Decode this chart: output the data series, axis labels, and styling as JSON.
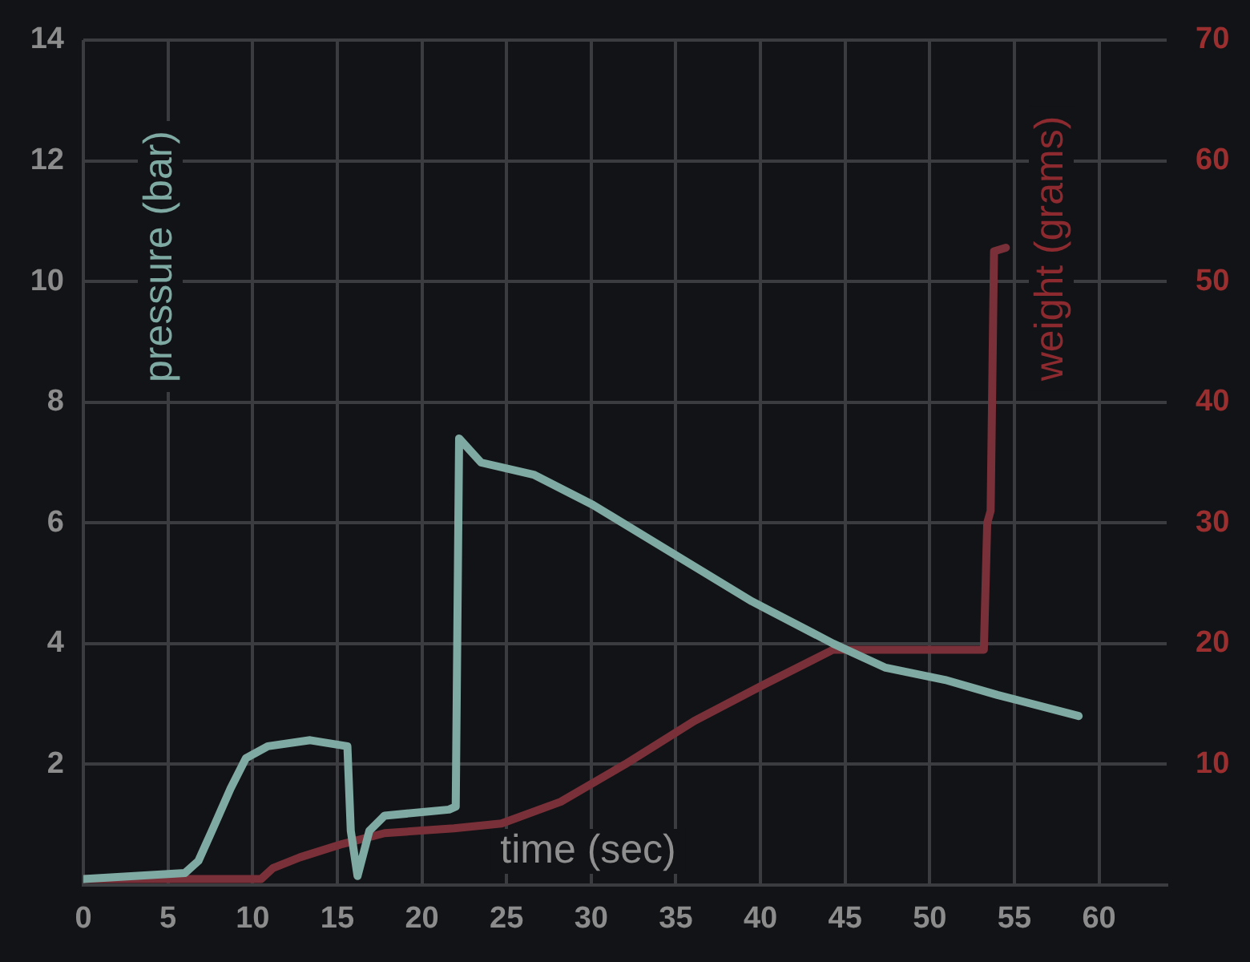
{
  "chart_data": {
    "type": "line",
    "xlabel": "time (sec)",
    "ylabel": "pressure (bar)",
    "y2label": "weight (grams)",
    "xlim": [
      0,
      64
    ],
    "xticks": [
      0,
      5,
      10,
      15,
      20,
      25,
      30,
      35,
      40,
      45,
      50,
      55,
      60
    ],
    "ylim": [
      0,
      14
    ],
    "yticks": [
      2,
      4,
      6,
      8,
      10,
      12,
      14
    ],
    "y2lim": [
      0,
      70
    ],
    "y2ticks": [
      10,
      20,
      30,
      40,
      50,
      60,
      70
    ],
    "grid": true,
    "legend": false,
    "marker": "none",
    "line_style": "solid",
    "series": [
      {
        "color": "#7fa9a3",
        "x": [
          0,
          6.0,
          6.8,
          7.6,
          8.7,
          9.6,
          10.9,
          13.4,
          15.6,
          15.8,
          16.2,
          16.9,
          17.8,
          21.6,
          22.0,
          22.2,
          23.5,
          26.6,
          30.1,
          34.8,
          39.5,
          44.3,
          47.4,
          50.9,
          54.0,
          58.8
        ],
        "values": [
          0.1,
          0.2,
          0.4,
          0.9,
          1.6,
          2.1,
          2.3,
          2.4,
          2.3,
          0.9,
          0.15,
          0.9,
          1.15,
          1.25,
          1.3,
          7.4,
          7.0,
          6.8,
          6.3,
          5.5,
          4.7,
          4.0,
          3.6,
          3.4,
          3.15,
          2.8
        ]
      },
      {
        "color": "#7a3038",
        "axis": "y2",
        "x": [
          0,
          10.5,
          11.2,
          12.8,
          15.3,
          17.8,
          21.9,
          24.7,
          28.2,
          32.0,
          36.1,
          40.2,
          44.3,
          53.2,
          53.4,
          53.6,
          53.8,
          54.5
        ],
        "values": [
          0.5,
          0.5,
          1.4,
          2.3,
          3.4,
          4.3,
          4.7,
          5.1,
          6.9,
          10,
          13.6,
          16.6,
          19.5,
          19.5,
          30,
          31,
          52.5,
          52.8
        ]
      }
    ]
  }
}
